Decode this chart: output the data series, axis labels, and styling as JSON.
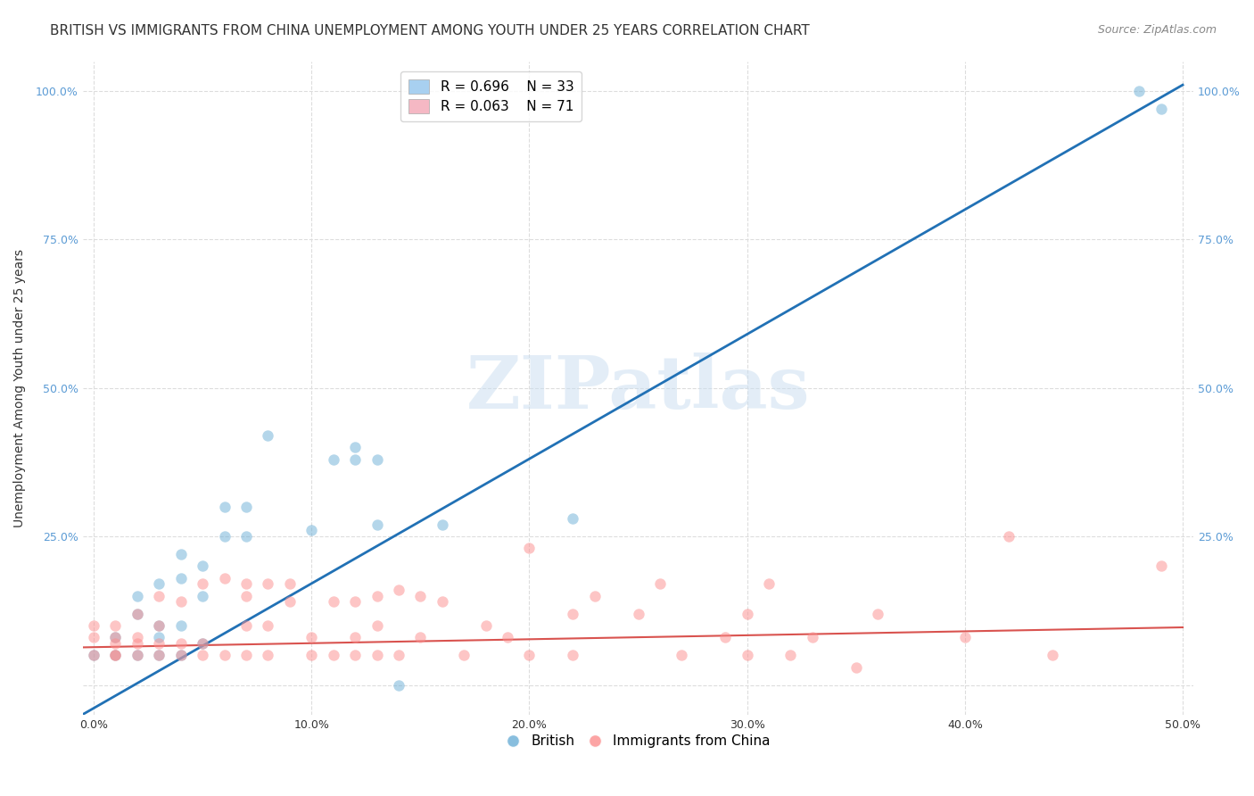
{
  "title": "BRITISH VS IMMIGRANTS FROM CHINA UNEMPLOYMENT AMONG YOUTH UNDER 25 YEARS CORRELATION CHART",
  "source": "Source: ZipAtlas.com",
  "xlabel": "",
  "ylabel": "Unemployment Among Youth under 25 years",
  "xlim": [
    -0.005,
    0.505
  ],
  "ylim": [
    -0.05,
    1.05
  ],
  "xticks": [
    0.0,
    0.1,
    0.2,
    0.3,
    0.4,
    0.5
  ],
  "yticks": [
    0.0,
    0.25,
    0.5,
    0.75,
    1.0
  ],
  "xtick_labels": [
    "0.0%",
    "10.0%",
    "20.0%",
    "30.0%",
    "40.0%",
    "50.0%"
  ],
  "ytick_labels": [
    "",
    "25.0%",
    "50.0%",
    "75.0%",
    "100.0%"
  ],
  "british_color": "#6baed6",
  "china_color": "#fc8d8d",
  "british_line_color": "#2171b5",
  "china_line_color": "#d9534f",
  "british_R": 0.696,
  "british_N": 33,
  "china_R": 0.063,
  "china_N": 71,
  "british_scatter_x": [
    0.0,
    0.01,
    0.01,
    0.02,
    0.02,
    0.02,
    0.03,
    0.03,
    0.03,
    0.03,
    0.04,
    0.04,
    0.04,
    0.04,
    0.05,
    0.05,
    0.05,
    0.06,
    0.06,
    0.07,
    0.07,
    0.08,
    0.1,
    0.11,
    0.12,
    0.12,
    0.13,
    0.13,
    0.14,
    0.16,
    0.22,
    0.48,
    0.49
  ],
  "british_scatter_y": [
    0.05,
    0.05,
    0.08,
    0.05,
    0.12,
    0.15,
    0.05,
    0.08,
    0.1,
    0.17,
    0.05,
    0.1,
    0.18,
    0.22,
    0.07,
    0.15,
    0.2,
    0.25,
    0.3,
    0.25,
    0.3,
    0.42,
    0.26,
    0.38,
    0.38,
    0.4,
    0.27,
    0.38,
    0.0,
    0.27,
    0.28,
    1.0,
    0.97
  ],
  "china_scatter_x": [
    0.0,
    0.0,
    0.0,
    0.01,
    0.01,
    0.01,
    0.01,
    0.01,
    0.02,
    0.02,
    0.02,
    0.02,
    0.03,
    0.03,
    0.03,
    0.03,
    0.04,
    0.04,
    0.04,
    0.05,
    0.05,
    0.05,
    0.06,
    0.06,
    0.07,
    0.07,
    0.07,
    0.07,
    0.08,
    0.08,
    0.08,
    0.09,
    0.09,
    0.1,
    0.1,
    0.11,
    0.11,
    0.12,
    0.12,
    0.12,
    0.13,
    0.13,
    0.13,
    0.14,
    0.14,
    0.15,
    0.15,
    0.16,
    0.17,
    0.18,
    0.19,
    0.2,
    0.2,
    0.22,
    0.22,
    0.23,
    0.25,
    0.26,
    0.27,
    0.29,
    0.3,
    0.3,
    0.31,
    0.32,
    0.33,
    0.35,
    0.36,
    0.4,
    0.42,
    0.44,
    0.49
  ],
  "china_scatter_y": [
    0.05,
    0.08,
    0.1,
    0.05,
    0.05,
    0.07,
    0.08,
    0.1,
    0.05,
    0.07,
    0.08,
    0.12,
    0.05,
    0.07,
    0.1,
    0.15,
    0.05,
    0.07,
    0.14,
    0.05,
    0.07,
    0.17,
    0.05,
    0.18,
    0.05,
    0.1,
    0.15,
    0.17,
    0.05,
    0.1,
    0.17,
    0.14,
    0.17,
    0.05,
    0.08,
    0.05,
    0.14,
    0.05,
    0.08,
    0.14,
    0.05,
    0.1,
    0.15,
    0.05,
    0.16,
    0.08,
    0.15,
    0.14,
    0.05,
    0.1,
    0.08,
    0.05,
    0.23,
    0.05,
    0.12,
    0.15,
    0.12,
    0.17,
    0.05,
    0.08,
    0.05,
    0.12,
    0.17,
    0.05,
    0.08,
    0.03,
    0.12,
    0.08,
    0.25,
    0.05,
    0.2
  ],
  "british_line_x": [
    -0.01,
    0.5
  ],
  "british_line_y": [
    -0.06,
    1.01
  ],
  "china_line_x": [
    -0.01,
    0.5
  ],
  "china_line_y": [
    0.063,
    0.097
  ],
  "watermark": "ZIPatlas",
  "legend_british_label": "British",
  "legend_china_label": "Immigrants from China",
  "background_color": "#ffffff",
  "grid_color": "#dddddd",
  "title_fontsize": 11,
  "axis_label_fontsize": 10,
  "tick_fontsize": 9,
  "scatter_size": 80,
  "scatter_alpha": 0.5,
  "legend_box_color_british": "#a8d0f0",
  "legend_box_color_china": "#f5b8c4"
}
